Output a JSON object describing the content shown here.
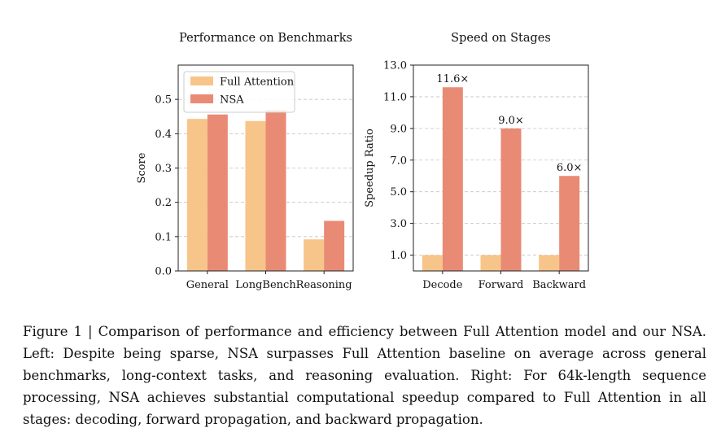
{
  "chart_data": [
    {
      "type": "bar",
      "title": "Performance on Benchmarks",
      "xlabel": "",
      "ylabel": "Score",
      "categories": [
        "General",
        "LongBench",
        "Reasoning"
      ],
      "series": [
        {
          "name": "Full Attention",
          "color": "#f7c589",
          "values": [
            0.443,
            0.437,
            0.092
          ]
        },
        {
          "name": "NSA",
          "color": "#e98a75",
          "values": [
            0.456,
            0.469,
            0.146
          ]
        }
      ],
      "ylim": [
        0,
        0.6
      ],
      "yticks": [
        0.0,
        0.1,
        0.2,
        0.3,
        0.4,
        0.5
      ],
      "ytick_labels": [
        "0.0",
        "0.1",
        "0.2",
        "0.3",
        "0.4",
        "0.5"
      ],
      "grid": "horizontal dashed",
      "legend": "top-left"
    },
    {
      "type": "bar",
      "title": "Speed on Stages",
      "xlabel": "",
      "ylabel": "Speedup Ratio",
      "categories": [
        "Decode",
        "Forward",
        "Backward"
      ],
      "series": [
        {
          "name": "Full Attention",
          "color": "#f7c589",
          "values": [
            1.0,
            1.0,
            1.0
          ]
        },
        {
          "name": "NSA",
          "color": "#e98a75",
          "values": [
            11.6,
            9.0,
            6.0
          ]
        }
      ],
      "annotations": [
        "11.6×",
        "9.0×",
        "6.0×"
      ],
      "ylim": [
        0,
        13
      ],
      "yticks": [
        1,
        3,
        5,
        7,
        9,
        11,
        13
      ],
      "ytick_labels": [
        "1.0",
        "3.0",
        "5.0",
        "7.0",
        "9.0",
        "11.0",
        "13.0"
      ],
      "grid": "horizontal dashed",
      "legend": "none"
    }
  ],
  "caption": {
    "label": "Figure 1 | Comparison of performance and efficiency between Full Attention model and our NSA.",
    "text": "Left: Despite being sparse, NSA surpasses Full Attention baseline on average across general benchmarks, long-context tasks, and reasoning evaluation. Right: For 64k-length sequence processing, NSA achieves substantial computational speedup compared to Full Attention in all stages: decoding, forward propagation, and backward propagation."
  }
}
